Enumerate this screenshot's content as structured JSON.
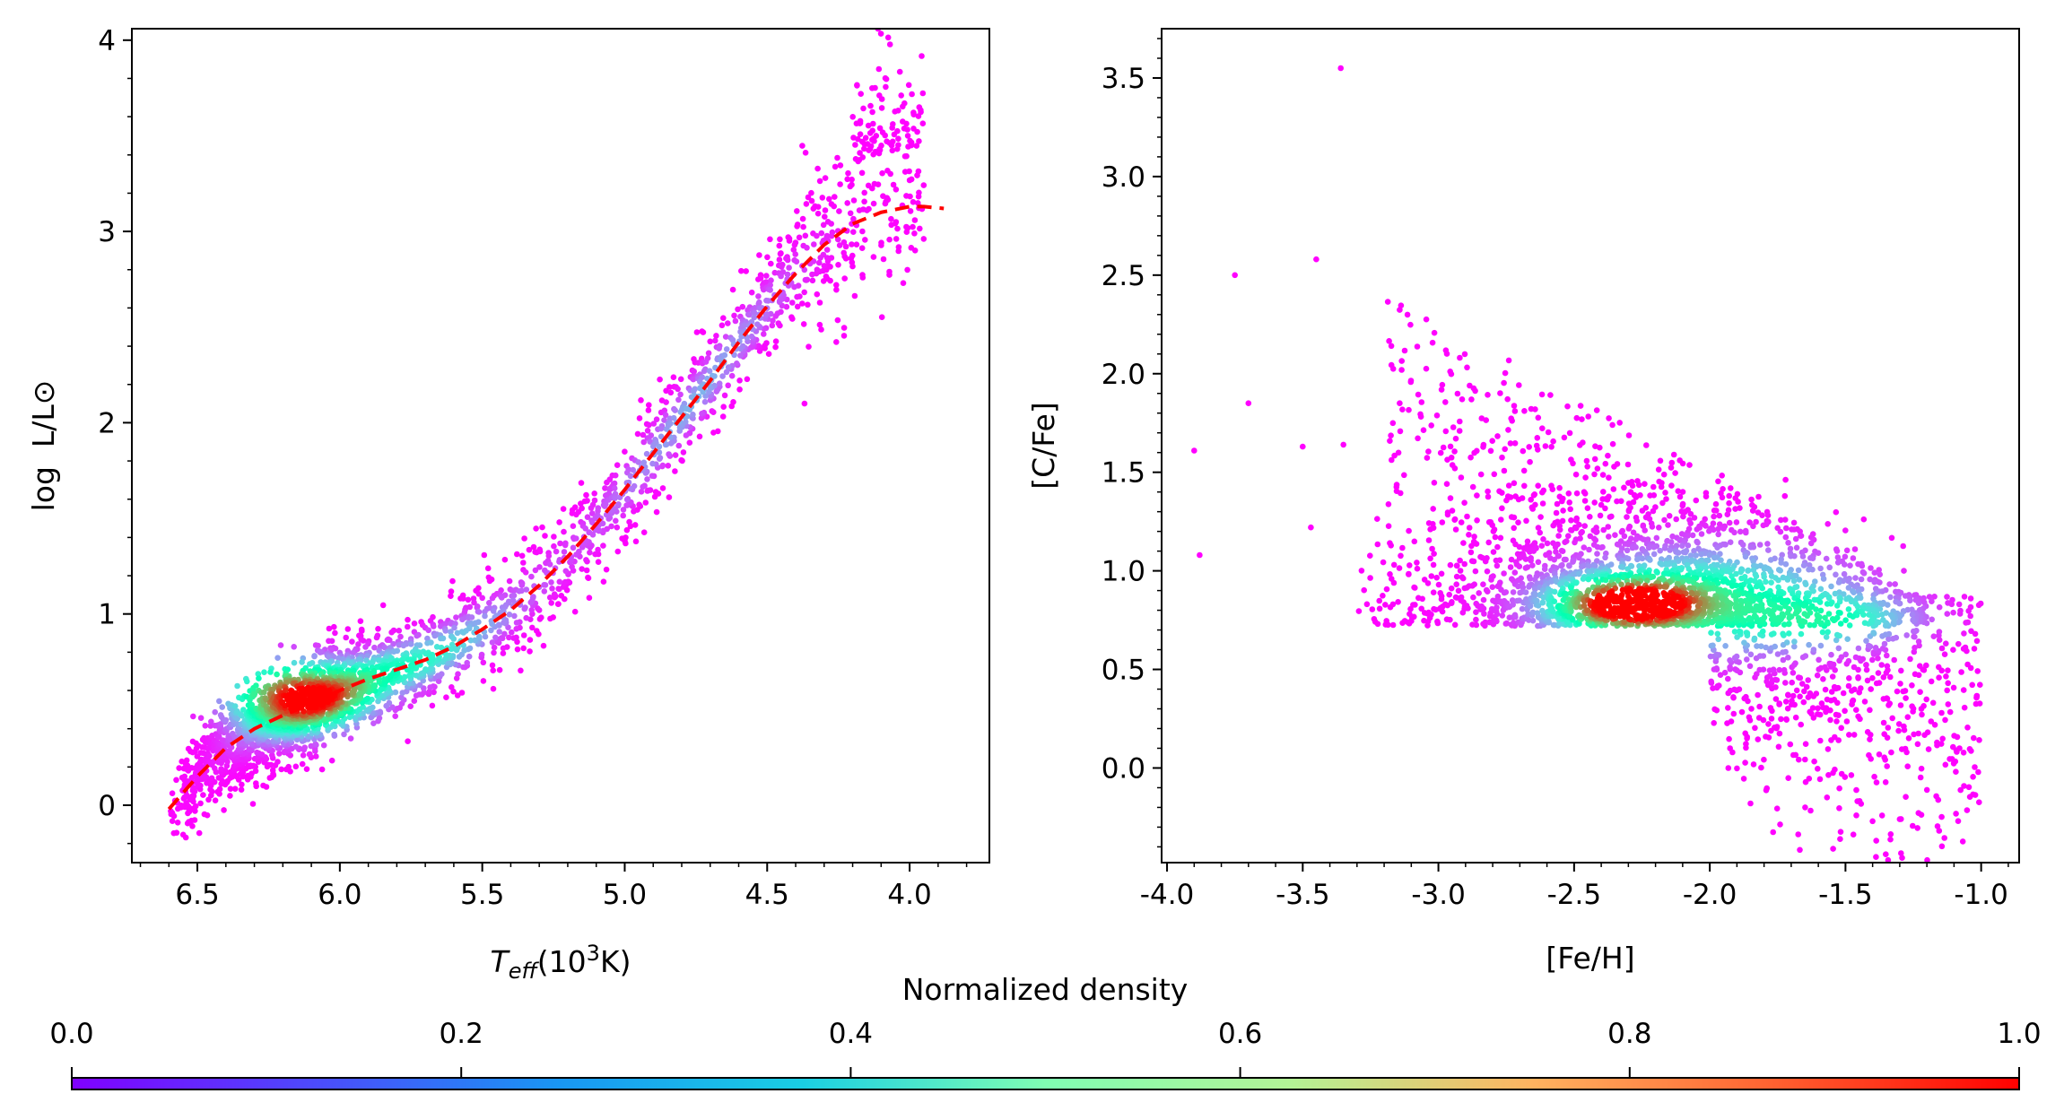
{
  "chart_data": [
    {
      "type": "scatter",
      "xlabel": "T_eff(10^3K)",
      "xlabel_parts": {
        "main": "T",
        "sub": "eff",
        "rest": "(10",
        "sup": "3",
        "end": "K)"
      },
      "ylabel": "log  L/L⊙",
      "xlim": [
        6.73,
        3.72
      ],
      "x_inverted": true,
      "ylim": [
        -0.3,
        4.06
      ],
      "xticks": [
        "6.5",
        "6.0",
        "5.5",
        "5.0",
        "4.5",
        "4.0"
      ],
      "xtick_values": [
        6.5,
        6.0,
        5.5,
        5.0,
        4.5,
        4.0
      ],
      "yticks": [
        "0",
        "1",
        "2",
        "3",
        "4"
      ],
      "ytick_values": [
        0,
        1,
        2,
        3,
        4
      ],
      "density_peak": [
        6.15,
        0.57
      ],
      "fit_curve": {
        "color": "#ff0000",
        "style": "dashed",
        "x": [
          6.6,
          6.5,
          6.4,
          6.3,
          6.2,
          6.1,
          6.0,
          5.9,
          5.8,
          5.7,
          5.6,
          5.5,
          5.4,
          5.3,
          5.2,
          5.1,
          5.0,
          4.9,
          4.8,
          4.7,
          4.6,
          4.5,
          4.4,
          4.3,
          4.2,
          4.1,
          4.0,
          3.95,
          3.88
        ],
        "y": [
          -0.02,
          0.15,
          0.3,
          0.4,
          0.47,
          0.53,
          0.6,
          0.66,
          0.71,
          0.76,
          0.83,
          0.92,
          1.02,
          1.15,
          1.3,
          1.47,
          1.65,
          1.84,
          2.03,
          2.22,
          2.42,
          2.61,
          2.78,
          2.93,
          3.04,
          3.1,
          3.13,
          3.13,
          3.12
        ]
      }
    },
    {
      "type": "scatter",
      "xlabel": "[Fe/H]",
      "ylabel": "[C/Fe]",
      "xlim": [
        -4.02,
        -0.86
      ],
      "ylim": [
        -0.48,
        3.75
      ],
      "xticks": [
        "-4.0",
        "-3.5",
        "-3.0",
        "-2.5",
        "-2.0",
        "-1.5",
        "-1.0"
      ],
      "xtick_values": [
        -4.0,
        -3.5,
        -3.0,
        -2.5,
        -2.0,
        -1.5,
        -1.0
      ],
      "yticks": [
        "0.0",
        "0.5",
        "1.0",
        "1.5",
        "2.0",
        "2.5",
        "3.0",
        "3.5"
      ],
      "ytick_values": [
        0.0,
        0.5,
        1.0,
        1.5,
        2.0,
        2.5,
        3.0,
        3.5
      ],
      "density_peak": [
        -2.3,
        0.83
      ]
    },
    {
      "type": "colorbar",
      "label": "Normalized density",
      "colormap": "rainbow",
      "range": [
        0,
        1
      ],
      "ticks": [
        "0.0",
        "0.2",
        "0.4",
        "0.6",
        "0.8",
        "1.0"
      ],
      "tick_values": [
        0.0,
        0.2,
        0.4,
        0.6,
        0.8,
        1.0
      ]
    }
  ]
}
